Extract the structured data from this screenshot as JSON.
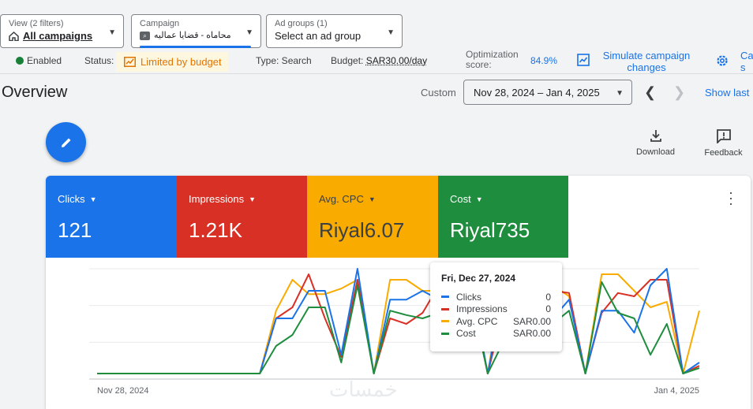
{
  "filters": {
    "view": {
      "label": "View (2 filters)",
      "value": "All campaigns"
    },
    "campaign": {
      "label": "Campaign",
      "value": "محاماه - قضايا عماليه"
    },
    "adgroups": {
      "label": "Ad groups (1)",
      "value": "Select an ad group"
    }
  },
  "status_row": {
    "enabled": "Enabled",
    "status_label": "Status:",
    "limited": "Limited by budget",
    "type": "Type: Search",
    "budget_label": "Budget:",
    "budget_value": "SAR30.00/day",
    "optimization_label": "Optimization score:",
    "optimization_value": "84.9%",
    "simulate": "Simulate campaign changes",
    "more_link": "Ca s"
  },
  "overview": {
    "title": "Overview",
    "custom": "Custom",
    "date_range": "Nov 28, 2024 – Jan 4, 2025",
    "show_last": "Show last"
  },
  "toolbar": {
    "download": "Download",
    "feedback": "Feedback"
  },
  "colors": {
    "clicks": "#1a73e8",
    "impressions": "#d93025",
    "cpc": "#f9ab00",
    "cost": "#1e8e3e"
  },
  "metrics": [
    {
      "label": "Clicks",
      "value": "121"
    },
    {
      "label": "Impressions",
      "value": "1.21K"
    },
    {
      "label": "Avg. CPC",
      "value": "Riyal6.07"
    },
    {
      "label": "Cost",
      "value": "Riyal735"
    }
  ],
  "tooltip": {
    "date": "Fri, Dec 27, 2024",
    "rows": [
      {
        "name": "Clicks",
        "value": "0"
      },
      {
        "name": "Impressions",
        "value": "0"
      },
      {
        "name": "Avg. CPC",
        "value": "SAR0.00"
      },
      {
        "name": "Cost",
        "value": "SAR0.00"
      }
    ]
  },
  "watermark": "خمسات",
  "chart_data": {
    "type": "line",
    "x_start_label": "Nov 28, 2024",
    "x_end_label": "Jan 4, 2025",
    "grid": true,
    "series": [
      {
        "name": "Clicks",
        "values": [
          0.05,
          0.05,
          0.05,
          0.05,
          0.05,
          0.05,
          0.05,
          0.05,
          0.05,
          0.05,
          0.05,
          0.55,
          0.55,
          0.8,
          0.8,
          0.22,
          1.0,
          0.05,
          0.72,
          0.72,
          0.8,
          0.72,
          0.72,
          0.85,
          0.05,
          0.8,
          0.8,
          0.55,
          0.55,
          0.72,
          0.05,
          0.62,
          0.62,
          0.42,
          0.85,
          1.0,
          0.05,
          0.15
        ]
      },
      {
        "name": "Impressions",
        "values": [
          0.05,
          0.05,
          0.05,
          0.05,
          0.05,
          0.05,
          0.05,
          0.05,
          0.05,
          0.05,
          0.05,
          0.55,
          0.65,
          0.95,
          0.55,
          0.2,
          0.9,
          0.05,
          0.55,
          0.5,
          0.6,
          0.85,
          0.55,
          0.75,
          0.05,
          0.65,
          0.65,
          0.55,
          0.8,
          0.78,
          0.05,
          0.6,
          0.78,
          0.75,
          0.9,
          0.9,
          0.05,
          0.12
        ]
      },
      {
        "name": "Avg. CPC",
        "values": [
          0.05,
          0.05,
          0.05,
          0.05,
          0.05,
          0.05,
          0.05,
          0.05,
          0.05,
          0.05,
          0.05,
          0.62,
          0.9,
          0.77,
          0.77,
          0.82,
          0.9,
          0.05,
          0.9,
          0.9,
          0.8,
          0.8,
          0.8,
          0.8,
          0.05,
          0.95,
          0.95,
          0.85,
          0.85,
          0.75,
          0.05,
          0.95,
          0.95,
          0.8,
          0.65,
          0.7,
          0.05,
          0.62
        ]
      },
      {
        "name": "Cost",
        "values": [
          0.05,
          0.05,
          0.05,
          0.05,
          0.05,
          0.05,
          0.05,
          0.05,
          0.05,
          0.05,
          0.05,
          0.3,
          0.4,
          0.65,
          0.65,
          0.15,
          0.85,
          0.05,
          0.62,
          0.58,
          0.55,
          0.6,
          0.55,
          0.75,
          0.05,
          0.35,
          0.3,
          0.3,
          0.5,
          0.62,
          0.05,
          0.88,
          0.6,
          0.55,
          0.22,
          0.5,
          0.05,
          0.1
        ]
      }
    ]
  }
}
